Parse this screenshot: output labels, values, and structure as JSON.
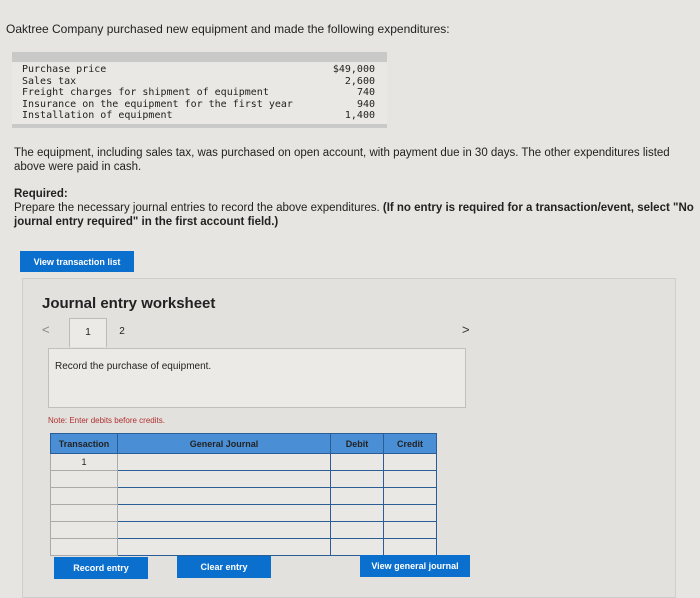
{
  "question": "Oaktree Company purchased new equipment and made the following expenditures:",
  "expenditures": [
    {
      "label": "Purchase price",
      "amount": "$49,000"
    },
    {
      "label": "Sales tax",
      "amount": "2,600"
    },
    {
      "label": "Freight charges for shipment of equipment",
      "amount": "740"
    },
    {
      "label": "Insurance on the equipment for the first year",
      "amount": "940"
    },
    {
      "label": "Installation of equipment",
      "amount": "1,400"
    }
  ],
  "paragraph": "The equipment, including sales tax, was purchased on open account, with payment due in 30 days. The other expenditures listed above were paid in cash.",
  "required_label": "Required:",
  "required_text": "Prepare the necessary journal entries to record the above expenditures. ",
  "required_bold": "(If no entry is required for a transaction/event, select \"No journal entry required\" in the first account field.)",
  "view_transaction_list": "View transaction list",
  "worksheet": {
    "title": "Journal entry worksheet",
    "pages": [
      "1",
      "2"
    ],
    "instruction": "Record the purchase of equipment.",
    "note": "Note: Enter debits before credits.",
    "columns": [
      "Transaction",
      "General Journal",
      "Debit",
      "Credit"
    ],
    "rows": [
      {
        "transaction": "1"
      },
      {
        "transaction": ""
      },
      {
        "transaction": ""
      },
      {
        "transaction": ""
      },
      {
        "transaction": ""
      },
      {
        "transaction": ""
      }
    ],
    "record_entry": "Record entry",
    "clear_entry": "Clear entry",
    "view_general_journal": "View general journal"
  }
}
